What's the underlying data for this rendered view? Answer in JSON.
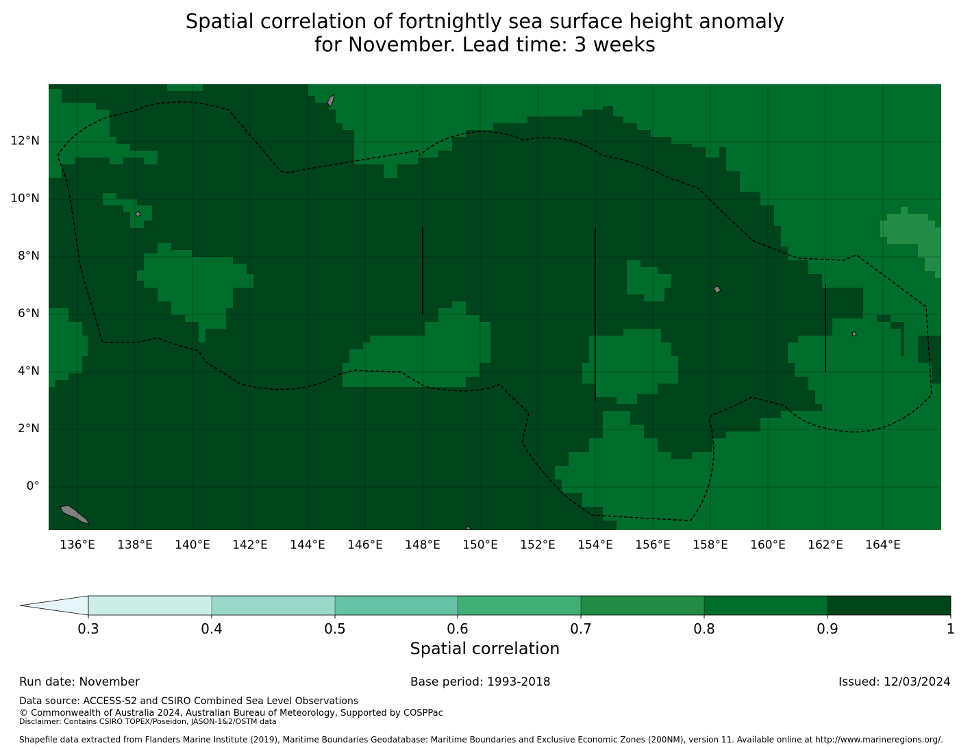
{
  "title_line1": "Spatial correlation of fortnightly sea surface height anomaly",
  "title_line2": "for November. Lead time: 3 weeks",
  "map": {
    "lat_labels": [
      "12°N",
      "10°N",
      "8°N",
      "6°N",
      "4°N",
      "2°N",
      "0°"
    ],
    "lon_labels": [
      "136°E",
      "138°E",
      "140°E",
      "142°E",
      "144°E",
      "146°E",
      "148°E",
      "150°E",
      "152°E",
      "154°E",
      "156°E",
      "158°E",
      "160°E",
      "162°E",
      "164°E"
    ],
    "colors": {
      "c0": "#e5f5f9",
      "c1": "#ccece6",
      "c2": "#99d8c9",
      "c3": "#66c2a4",
      "c4": "#41ae76",
      "c5": "#238b45",
      "c6": "#006d2c",
      "c7": "#00441b",
      "land": "#808080"
    }
  },
  "colorbar": {
    "tick_labels": [
      "0.3",
      "0.4",
      "0.5",
      "0.6",
      "0.7",
      "0.8",
      "0.9",
      "1"
    ],
    "label": "Spatial correlation"
  },
  "footer": {
    "run_date": "Run date: November",
    "base_period": "Base period: 1993-2018",
    "issued": "Issued: 12/03/2024",
    "data_source": "Data source: ACCESS-S2 and CSIRO Combined Sea Level Observations",
    "copyright": "© Commonwealth of Australia 2024, Australian Bureau of Meteorology, Supported by COSPPac",
    "disclaimer": "Disclaimer: Contains CSIRO TOPEX/Poseidon, JASON-1&2/OSTM data",
    "shapefile": "Shapefile data extracted from Flanders Marine Institute (2019), Maritime Boundaries Geodatabase: Maritime Boundaries and Exclusive Economic Zones (200NM), version 11. Available online at http://www.marineregions.org/."
  }
}
